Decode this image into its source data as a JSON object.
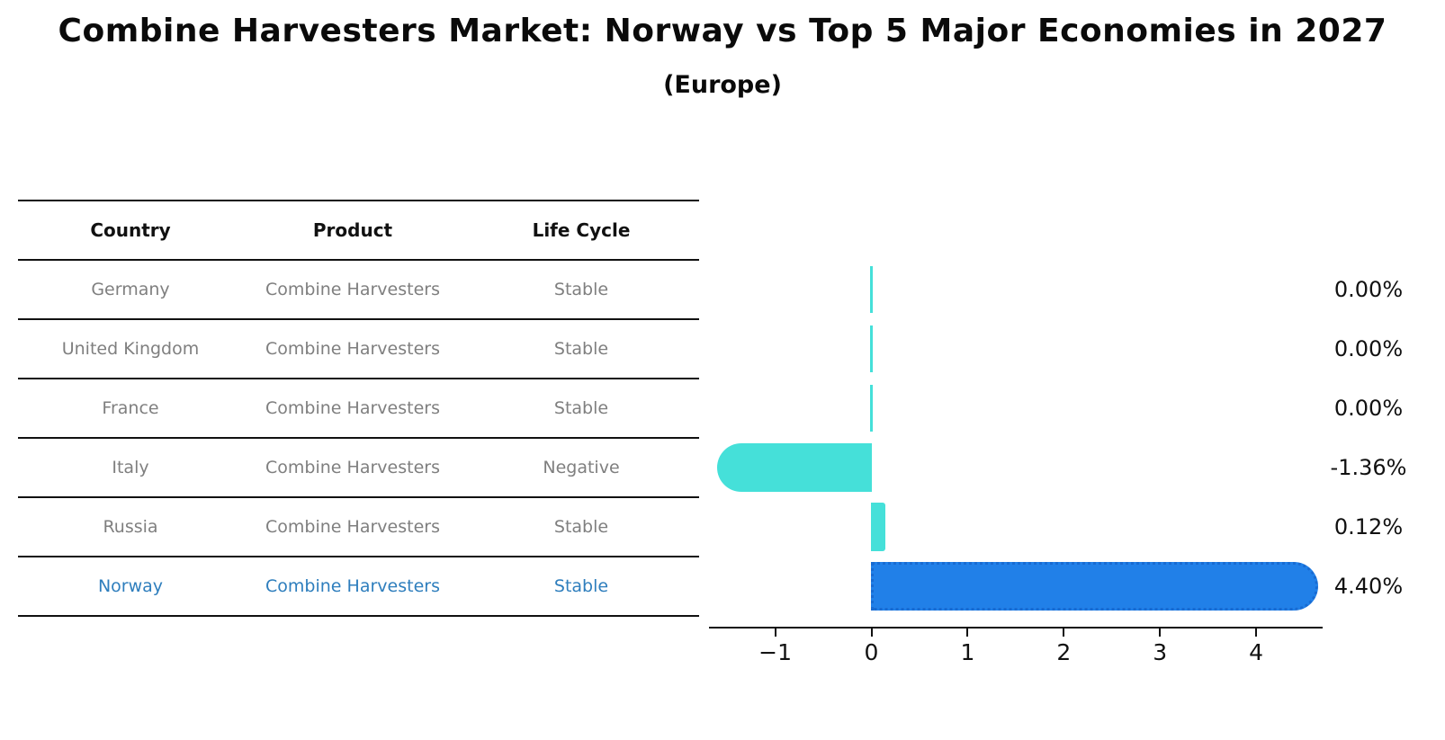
{
  "title": "Combine Harvesters Market: Norway vs Top 5 Major Economies in 2027",
  "subtitle": "(Europe)",
  "table": {
    "headers": [
      "Country",
      "Product",
      "Life Cycle"
    ],
    "rows": [
      {
        "country": "Germany",
        "product": "Combine Harvesters",
        "life_cycle": "Stable",
        "highlighted": false
      },
      {
        "country": "United Kingdom",
        "product": "Combine Harvesters",
        "life_cycle": "Stable",
        "highlighted": false
      },
      {
        "country": "France",
        "product": "Combine Harvesters",
        "life_cycle": "Stable",
        "highlighted": false
      },
      {
        "country": "Italy",
        "product": "Combine Harvesters",
        "life_cycle": "Negative",
        "highlighted": false
      },
      {
        "country": "Russia",
        "product": "Combine Harvesters",
        "life_cycle": "Stable",
        "highlighted": false
      },
      {
        "country": "Norway",
        "product": "Combine Harvesters",
        "life_cycle": "Stable",
        "highlighted": true
      }
    ]
  },
  "chart_data": {
    "type": "bar",
    "orientation": "horizontal",
    "title": "Combine Harvesters Market: Norway vs Top 5 Major Economies in 2027",
    "subtitle": "(Europe)",
    "categories": [
      "Germany",
      "United Kingdom",
      "France",
      "Italy",
      "Russia",
      "Norway"
    ],
    "values": [
      0.0,
      0.0,
      0.0,
      -1.36,
      0.12,
      4.4
    ],
    "value_labels": [
      "0.00%",
      "0.00%",
      "0.00%",
      "-1.36%",
      "0.12%",
      "4.40%"
    ],
    "highlight_index": 5,
    "x_tick_values": [
      -1,
      0,
      1,
      2,
      3,
      4
    ],
    "x_tick_labels": [
      "−1",
      "0",
      "1",
      "2",
      "3",
      "4"
    ],
    "xlim": [
      -1.69,
      4.69
    ],
    "grid": false,
    "legend": "none",
    "colors": {
      "default_bar": "#45e0d9",
      "highlight_bar": "#2180e8",
      "highlight_bar_border": "#186bd2",
      "highlight_text": "#2e7ebd",
      "row_text": "#7f7f7f",
      "header_text": "#111111",
      "axis": "#111111",
      "background": "#ffffff"
    }
  }
}
